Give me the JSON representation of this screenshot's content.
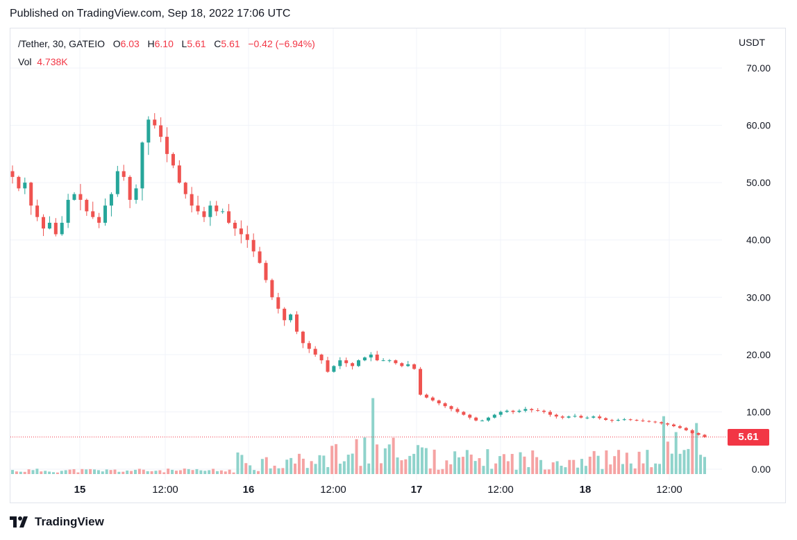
{
  "header": {
    "published": "Published on TradingView.com, Sep 18, 2022 17:06 UTC"
  },
  "legend": {
    "symbol": "/Tether, 30, GATEIO",
    "open_label": "O",
    "open": "6.03",
    "high_label": "H",
    "high": "6.10",
    "low_label": "L",
    "low": "5.61",
    "close_label": "C",
    "close": "5.61",
    "change": "−0.42 (−6.94%)",
    "vol_label": "Vol",
    "vol": "4.738K"
  },
  "axis": {
    "currency": "USDT",
    "last_price": "5.61"
  },
  "footer": {
    "brand": "TradingView"
  },
  "colors": {
    "up": "#26a69a",
    "down": "#ef5350",
    "vol_up": "#8fd3cb",
    "vol_down": "#f5a3a3",
    "grid": "#f0f3fa",
    "text": "#131722"
  },
  "chart_data": {
    "type": "candlestick",
    "y_axis": {
      "min": 0,
      "max": 70,
      "ticks": [
        "70.00",
        "60.00",
        "50.00",
        "40.00",
        "30.00",
        "20.00",
        "10.00",
        "0.00"
      ]
    },
    "x_ticks": [
      "15",
      "12:00",
      "16",
      "12:00",
      "17",
      "12:00",
      "18",
      "12:00"
    ],
    "x_ticks_bold": [
      true,
      false,
      true,
      false,
      true,
      false,
      true,
      false
    ],
    "last_price": 5.61,
    "close_path": [
      51,
      49,
      50,
      46,
      44,
      42,
      43,
      41,
      43,
      47,
      48,
      47,
      45,
      44,
      43,
      46,
      48,
      52,
      51,
      47,
      49,
      57,
      61,
      60,
      58,
      55,
      53,
      50,
      48,
      46,
      45,
      44,
      46,
      45,
      45,
      43,
      42,
      41,
      40,
      38,
      36,
      33,
      30,
      28,
      26,
      27,
      24,
      22,
      21,
      20,
      19,
      17,
      18,
      19,
      18.5,
      18,
      19,
      19.5,
      20,
      19,
      19,
      19,
      18.5,
      18,
      18.3,
      17.5,
      13,
      12.5,
      12,
      11.5,
      11,
      10.5,
      10,
      9.5,
      9,
      8.5,
      8.5,
      9,
      9.5,
      10,
      10.2,
      10,
      10.2,
      10.5,
      10.3,
      10.2,
      10,
      9.5,
      9.2,
      9,
      9.2,
      9.3,
      9,
      9,
      9.2,
      8.9,
      8.6,
      8.5,
      8.6,
      8.7,
      8.6,
      8.5,
      8.4,
      8.3,
      8.2,
      8.0,
      7.8,
      7.5,
      7.2,
      6.8,
      6.3,
      6.0,
      5.61
    ],
    "volume_bars": 170
  }
}
